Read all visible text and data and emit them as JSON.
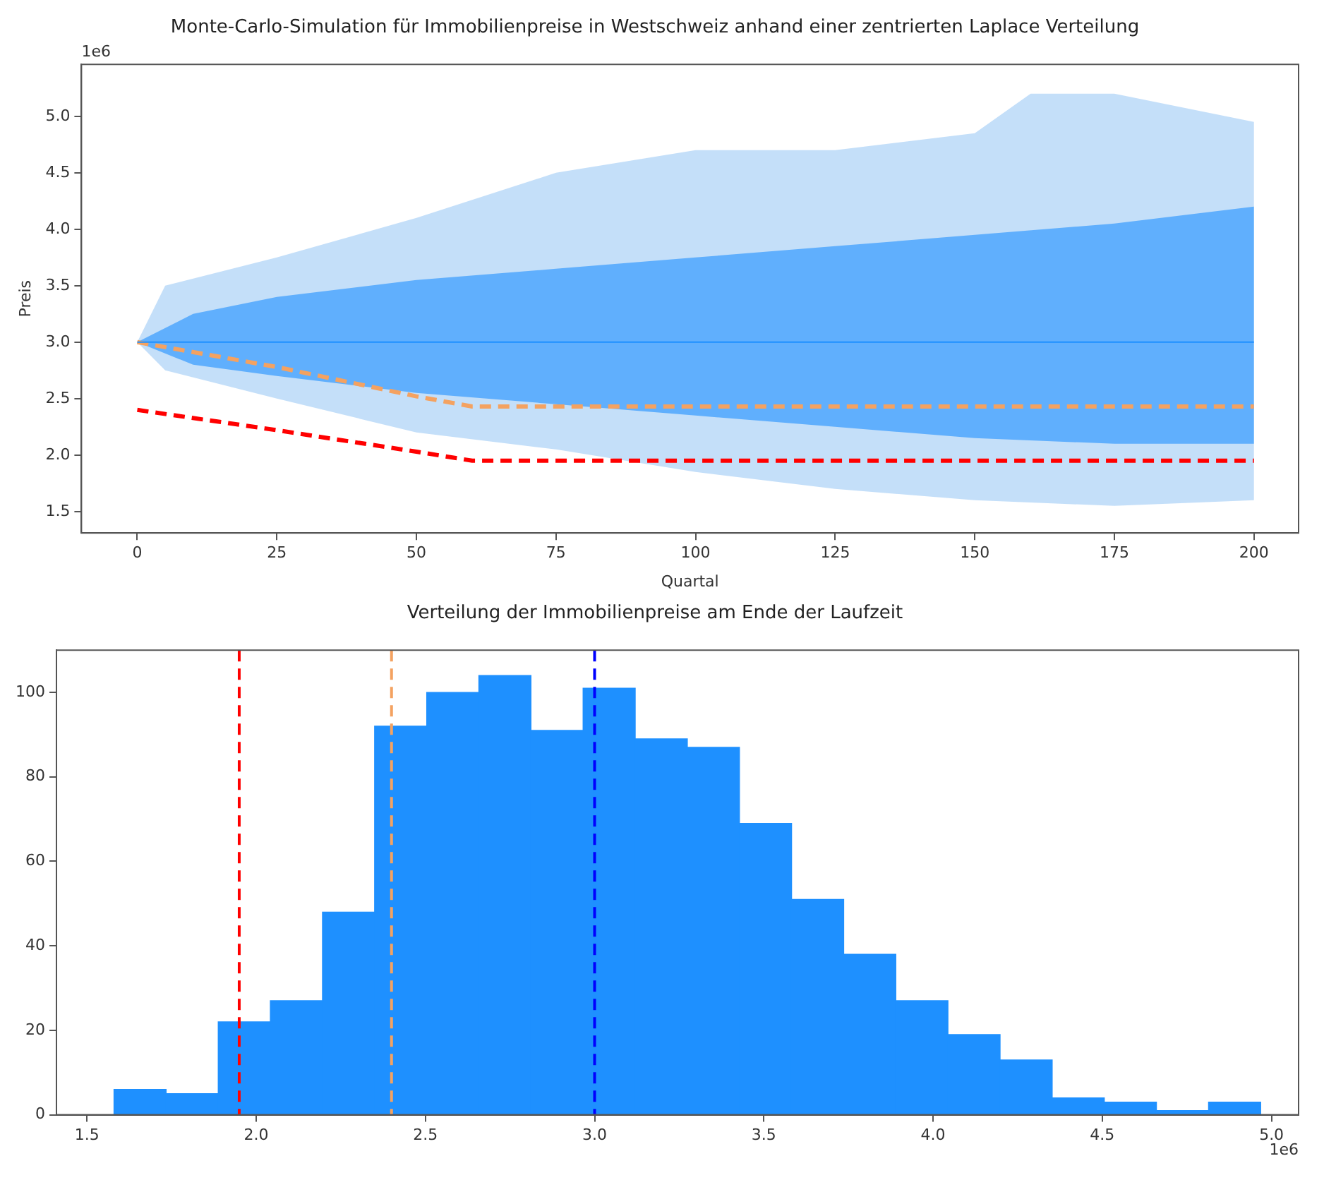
{
  "chart_data": [
    {
      "type": "line",
      "title": "Monte-Carlo-Simulation für Immobilienpreise in Westschweiz anhand einer zentrierten Laplace Verteilung",
      "xlabel": "Quartal",
      "ylabel": "Preis",
      "annotations": [
        "1e6"
      ],
      "xlim": [
        -10,
        208
      ],
      "xticks": [
        0,
        25,
        50,
        75,
        100,
        125,
        150,
        175,
        200
      ],
      "ylim": [
        1.31,
        5.46
      ],
      "yticks": [
        1.5,
        {
          "value": 2,
          "label": "2.0"
        },
        2.5,
        {
          "value": 3,
          "label": "3.0"
        },
        3.5,
        {
          "value": 4,
          "label": "4.0"
        },
        4.5,
        {
          "value": 5,
          "label": "5.0"
        }
      ],
      "grid": false,
      "legend": false,
      "series": [
        {
          "color": "#9cc9f5",
          "x": [
            0,
            5,
            25,
            50,
            75,
            100,
            125,
            150,
            160,
            175,
            190,
            200
          ],
          "values": [
            null,
            null,
            null,
            null,
            null,
            null,
            null,
            null,
            null,
            null,
            null,
            null
          ],
          "lower": [
            3.0,
            2.75,
            2.5,
            2.2,
            2.05,
            1.85,
            1.7,
            1.6,
            1.58,
            1.55,
            1.58,
            1.6
          ],
          "upper": [
            3.0,
            3.5,
            3.75,
            4.1,
            4.5,
            4.7,
            4.7,
            4.85,
            5.2,
            5.2,
            5.05,
            4.95
          ]
        },
        {
          "color": "#1e90ff",
          "x": [
            0,
            10,
            25,
            50,
            75,
            100,
            125,
            150,
            175,
            200
          ],
          "values": [
            3.0,
            3.0,
            3.0,
            3.0,
            3.0,
            3.0,
            3.0,
            3.0,
            3.0,
            3.0
          ],
          "lower": [
            3.0,
            2.8,
            2.7,
            2.55,
            2.45,
            2.35,
            2.25,
            2.15,
            2.1,
            2.1
          ],
          "upper": [
            3.0,
            3.25,
            3.4,
            3.55,
            3.65,
            3.75,
            3.85,
            3.95,
            4.05,
            4.2
          ]
        },
        {
          "color": "#f4a261",
          "line_style": "dashed",
          "x": [
            0,
            25,
            50,
            60,
            200
          ],
          "values": [
            3.0,
            2.78,
            2.52,
            2.43,
            2.43
          ]
        },
        {
          "color": "#ff0000",
          "line_style": "dashed",
          "x": [
            0,
            25,
            50,
            60,
            200
          ],
          "values": [
            2.4,
            2.22,
            2.03,
            1.95,
            1.95
          ]
        }
      ]
    },
    {
      "type": "histogram",
      "title": "Verteilung der Immobilienpreise am Ende der Laufzeit",
      "annotations": [
        "1e6"
      ],
      "color": "#1e90ff",
      "bins": [
        1.58,
        1.734,
        1.888,
        2.042,
        2.196,
        2.35,
        2.504,
        2.658,
        2.812,
        2.966,
        3.12,
        3.274,
        3.428,
        3.582,
        3.736,
        3.89,
        4.044,
        4.198,
        4.352,
        4.506,
        4.66,
        4.814,
        4.968
      ],
      "grid": false,
      "legend": false,
      "values": [
        6,
        5,
        22,
        27,
        48,
        92,
        100,
        104,
        91,
        101,
        89,
        87,
        69,
        51,
        38,
        27,
        19,
        13,
        4,
        3,
        1,
        3
      ],
      "xlim": [
        1.41,
        5.08
      ],
      "xticks": [
        1.5,
        {
          "value": 2,
          "label": "2.0"
        },
        2.5,
        {
          "value": 3,
          "label": "3.0"
        },
        3.5,
        {
          "value": 4,
          "label": "4.0"
        },
        4.5,
        {
          "value": 5,
          "label": "5.0"
        }
      ],
      "ylim": [
        0,
        110
      ],
      "yticks": [
        0,
        20,
        40,
        60,
        80,
        100
      ],
      "ref_lines": [
        {
          "axis": "x",
          "value": 1.95,
          "color": "#ff0000",
          "line_style": "dashed"
        },
        {
          "axis": "x",
          "value": 2.4,
          "color": "#f4a261",
          "line_style": "dashed"
        },
        {
          "axis": "x",
          "value": 3.0,
          "color": "#0000ff",
          "line_style": "dashed"
        }
      ]
    }
  ]
}
